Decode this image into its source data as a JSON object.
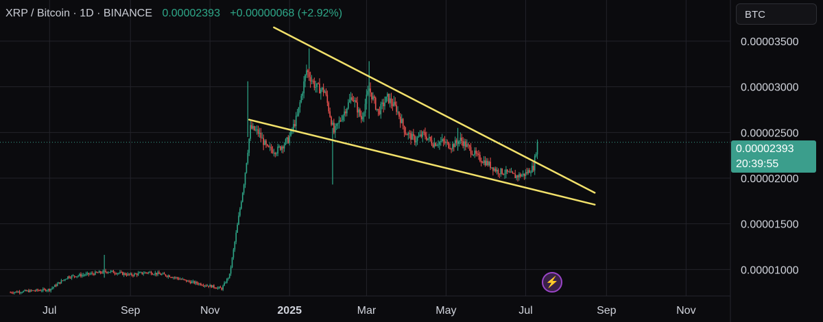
{
  "header": {
    "symbol": "XRP / Bitcoin · 1D · BINANCE",
    "last_price": "0.00002393",
    "change": "+0.00000068 (+2.92%)"
  },
  "currency_button": "BTC",
  "price_tag": {
    "price": "0.00002393",
    "countdown": "20:39:55"
  },
  "colors": {
    "up": "#2ea889",
    "down": "#ef5350",
    "trendline": "#f2e16b",
    "grid": "#23232a",
    "background": "#0b0b0e"
  },
  "chart_data": {
    "type": "candlestick",
    "title": "XRP / Bitcoin · 1D · BINANCE",
    "y_axis_ticks": [
      "0.00003500",
      "0.00003000",
      "0.00002500",
      "0.00002000",
      "0.00001500",
      "0.00001000"
    ],
    "x_axis_ticks": [
      "Jul",
      "Sep",
      "Nov",
      "2025",
      "Mar",
      "May",
      "Jul",
      "Sep",
      "Nov"
    ],
    "ylim": [
      7.1e-06,
      3.95e-05
    ],
    "grid": true,
    "series": [
      {
        "name": "price_path",
        "points": [
          [
            "2024-06-01",
            7.5e-06
          ],
          [
            "2024-07-01",
            7.8e-06
          ],
          [
            "2024-07-15",
            9.2e-06
          ],
          [
            "2024-08-01",
            9.5e-06
          ],
          [
            "2024-08-15",
            9.8e-06
          ],
          [
            "2024-09-01",
            9.4e-06
          ],
          [
            "2024-09-15",
            9.7e-06
          ],
          [
            "2024-10-01",
            9.3e-06
          ],
          [
            "2024-10-15",
            8.7e-06
          ],
          [
            "2024-11-01",
            8.2e-06
          ],
          [
            "2024-11-10",
            7.9e-06
          ],
          [
            "2024-11-16",
            9.4e-06
          ],
          [
            "2024-11-22",
            1.48e-05
          ],
          [
            "2024-11-27",
            1.95e-05
          ],
          [
            "2024-12-02",
            2.55e-05
          ],
          [
            "2024-12-08",
            2.5e-05
          ],
          [
            "2024-12-15",
            2.32e-05
          ],
          [
            "2024-12-22",
            2.3e-05
          ],
          [
            "2024-12-31",
            2.42e-05
          ],
          [
            "2025-01-07",
            2.68e-05
          ],
          [
            "2025-01-14",
            3.18e-05
          ],
          [
            "2025-01-21",
            3e-05
          ],
          [
            "2025-01-28",
            2.95e-05
          ],
          [
            "2025-02-04",
            2.5e-05
          ],
          [
            "2025-02-11",
            2.7e-05
          ],
          [
            "2025-02-18",
            2.9e-05
          ],
          [
            "2025-02-25",
            2.65e-05
          ],
          [
            "2025-03-03",
            2.98e-05
          ],
          [
            "2025-03-10",
            2.72e-05
          ],
          [
            "2025-03-17",
            2.88e-05
          ],
          [
            "2025-03-24",
            2.76e-05
          ],
          [
            "2025-03-31",
            2.5e-05
          ],
          [
            "2025-04-07",
            2.42e-05
          ],
          [
            "2025-04-14",
            2.48e-05
          ],
          [
            "2025-04-21",
            2.38e-05
          ],
          [
            "2025-04-28",
            2.4e-05
          ],
          [
            "2025-05-05",
            2.35e-05
          ],
          [
            "2025-05-12",
            2.42e-05
          ],
          [
            "2025-05-19",
            2.32e-05
          ],
          [
            "2025-05-26",
            2.22e-05
          ],
          [
            "2025-06-02",
            2.16e-05
          ],
          [
            "2025-06-09",
            2.08e-05
          ],
          [
            "2025-06-16",
            2.06e-05
          ],
          [
            "2025-06-23",
            2.02e-05
          ],
          [
            "2025-06-30",
            2.04e-05
          ],
          [
            "2025-07-07",
            2.12e-05
          ],
          [
            "2025-07-10",
            2.39e-05
          ]
        ]
      }
    ],
    "spikes": [
      [
        "2024-08-12",
        9.1e-06,
        1.16e-05
      ],
      [
        "2024-11-30",
        2.45e-05,
        3.06e-05
      ],
      [
        "2025-01-16",
        3.2e-05,
        3.42e-05
      ],
      [
        "2025-02-03",
        1.93e-05,
        2.55e-05
      ],
      [
        "2025-03-03",
        2.65e-05,
        3.28e-05
      ],
      [
        "2025-05-10",
        2.3e-05,
        2.55e-05
      ]
    ],
    "trendlines": [
      {
        "name": "upper",
        "points": [
          [
            "2024-12-20",
            3.65e-05
          ],
          [
            "2025-08-23",
            1.84e-05
          ]
        ]
      },
      {
        "name": "lower",
        "points": [
          [
            "2024-12-01",
            2.64e-05
          ],
          [
            "2025-08-23",
            1.71e-05
          ]
        ]
      }
    ],
    "last_price_line": 2.393e-05
  }
}
